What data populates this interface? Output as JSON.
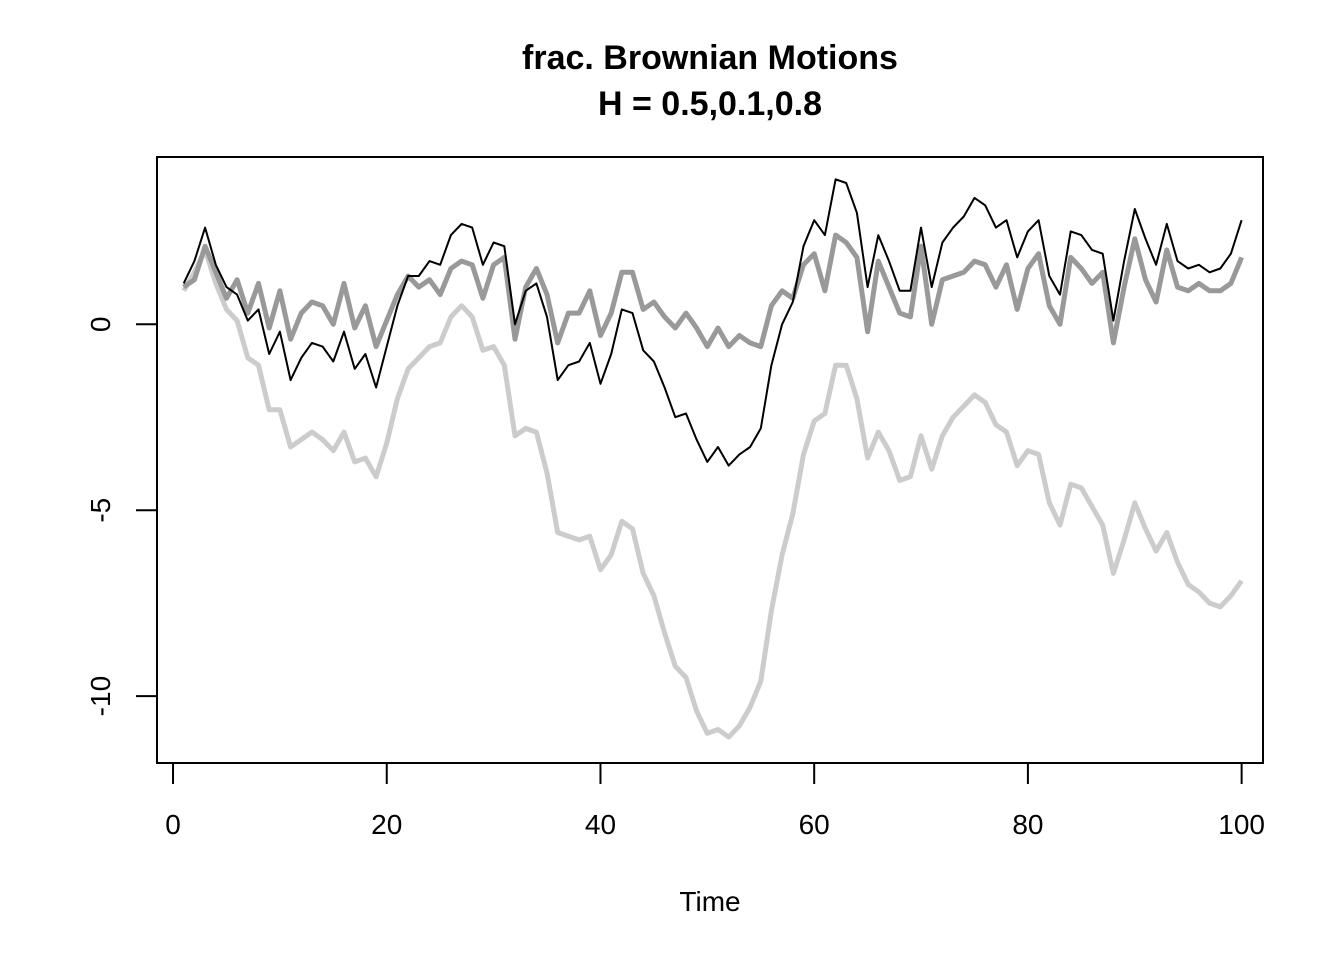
{
  "chart_data": {
    "type": "line",
    "title": "frac. Brownian Motions",
    "subtitle": "H = 0.5,0.1,0.8",
    "xlabel": "Time",
    "ylabel": "",
    "xlim": [
      -1.5,
      102
    ],
    "ylim": [
      -11.8,
      4.5
    ],
    "x_ticks": [
      0,
      20,
      40,
      60,
      80,
      100
    ],
    "y_ticks": [
      -10,
      -5,
      0
    ],
    "grid": false,
    "legend": "none",
    "series": [
      {
        "color": "#cccccc",
        "line_width": "thick",
        "x_start": 1,
        "values": [
          0.9,
          1.4,
          2.0,
          1.1,
          0.4,
          0.1,
          -0.9,
          -1.1,
          -2.3,
          -2.3,
          -3.3,
          -3.1,
          -2.9,
          -3.1,
          -3.4,
          -2.9,
          -3.7,
          -3.6,
          -4.1,
          -3.2,
          -2.0,
          -1.2,
          -0.9,
          -0.6,
          -0.5,
          0.2,
          0.5,
          0.2,
          -0.7,
          -0.6,
          -1.1,
          -3.0,
          -2.8,
          -2.9,
          -4.0,
          -5.6,
          -5.7,
          -5.8,
          -5.7,
          -6.6,
          -6.2,
          -5.3,
          -5.5,
          -6.7,
          -7.3,
          -8.3,
          -9.2,
          -9.5,
          -10.4,
          -11.0,
          -10.9,
          -11.1,
          -10.8,
          -10.3,
          -9.6,
          -7.7,
          -6.2,
          -5.1,
          -3.5,
          -2.6,
          -2.4,
          -1.1,
          -1.1,
          -2.0,
          -3.6,
          -2.9,
          -3.4,
          -4.2,
          -4.1,
          -3.0,
          -3.9,
          -3.0,
          -2.5,
          -2.2,
          -1.9,
          -2.1,
          -2.7,
          -2.9,
          -3.8,
          -3.4,
          -3.5,
          -4.8,
          -5.4,
          -4.3,
          -4.4,
          -4.9,
          -5.4,
          -6.7,
          -5.8,
          -4.8,
          -5.5,
          -6.1,
          -5.6,
          -6.4,
          -7.0,
          -7.2,
          -7.5,
          -7.6,
          -7.3,
          -6.9
        ]
      },
      {
        "color": "#999999",
        "line_width": "medium",
        "x_start": 1,
        "values": [
          1.0,
          1.2,
          2.1,
          1.4,
          0.7,
          1.2,
          0.3,
          1.1,
          -0.1,
          0.9,
          -0.4,
          0.3,
          0.6,
          0.5,
          0.0,
          1.1,
          -0.1,
          0.5,
          -0.6,
          0.1,
          0.8,
          1.3,
          1.0,
          1.2,
          0.8,
          1.5,
          1.7,
          1.6,
          0.7,
          1.6,
          1.8,
          -0.4,
          1.0,
          1.5,
          0.8,
          -0.5,
          0.3,
          0.3,
          0.9,
          -0.3,
          0.3,
          1.4,
          1.4,
          0.4,
          0.6,
          0.2,
          -0.1,
          0.3,
          -0.1,
          -0.6,
          -0.1,
          -0.6,
          -0.3,
          -0.5,
          -0.6,
          0.5,
          0.9,
          0.7,
          1.6,
          1.9,
          0.9,
          2.4,
          2.2,
          1.8,
          -0.2,
          1.7,
          1.0,
          0.3,
          0.2,
          2.1,
          0.0,
          1.2,
          1.3,
          1.4,
          1.7,
          1.6,
          1.0,
          1.6,
          0.4,
          1.5,
          1.9,
          0.5,
          0.0,
          1.8,
          1.5,
          1.1,
          1.4,
          -0.5,
          1.0,
          2.3,
          1.2,
          0.6,
          2.0,
          1.0,
          0.9,
          1.1,
          0.9,
          0.9,
          1.1,
          1.8
        ]
      },
      {
        "color": "#000000",
        "line_width": "thin",
        "x_start": 1,
        "values": [
          1.1,
          1.7,
          2.6,
          1.6,
          1.0,
          0.8,
          0.1,
          0.4,
          -0.8,
          -0.2,
          -1.5,
          -0.9,
          -0.5,
          -0.6,
          -1.0,
          -0.2,
          -1.2,
          -0.8,
          -1.7,
          -0.6,
          0.5,
          1.3,
          1.3,
          1.7,
          1.6,
          2.4,
          2.7,
          2.6,
          1.6,
          2.2,
          2.1,
          0.0,
          0.9,
          1.1,
          0.2,
          -1.5,
          -1.1,
          -1.0,
          -0.5,
          -1.6,
          -0.8,
          0.4,
          0.3,
          -0.7,
          -1.0,
          -1.7,
          -2.5,
          -2.4,
          -3.1,
          -3.7,
          -3.3,
          -3.8,
          -3.5,
          -3.3,
          -2.8,
          -1.1,
          0.0,
          0.6,
          2.1,
          2.8,
          2.4,
          3.9,
          3.8,
          3.0,
          1.0,
          2.4,
          1.7,
          0.9,
          0.9,
          2.6,
          1.0,
          2.2,
          2.6,
          2.9,
          3.4,
          3.2,
          2.6,
          2.8,
          1.8,
          2.5,
          2.8,
          1.3,
          0.8,
          2.5,
          2.4,
          2.0,
          1.9,
          0.1,
          1.7,
          3.1,
          2.3,
          1.6,
          2.7,
          1.7,
          1.5,
          1.6,
          1.4,
          1.5,
          1.9,
          2.8
        ]
      }
    ]
  }
}
